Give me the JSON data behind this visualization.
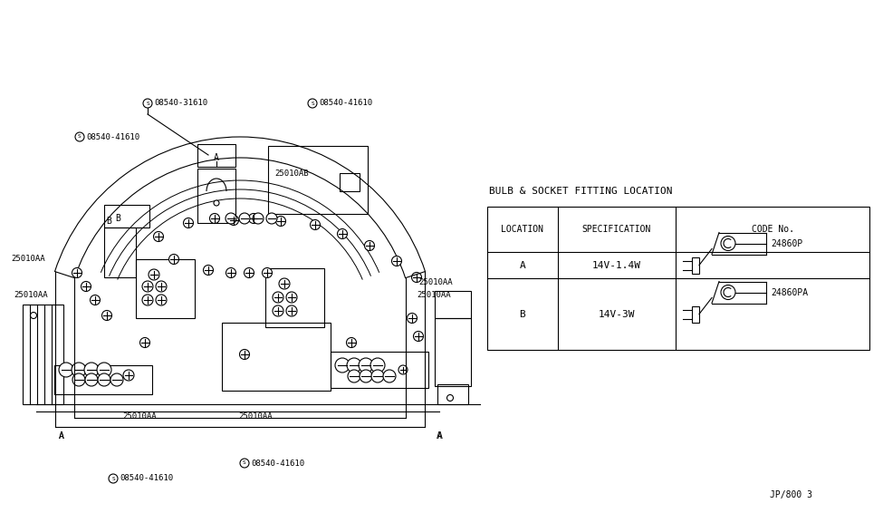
{
  "bg_color": "#ffffff",
  "line_color": "#000000",
  "title_text": "BULB & SOCKET FITTING LOCATION",
  "table_rows": [
    [
      "A",
      "14V-1.4W",
      "24860P"
    ],
    [
      "B",
      "14V-3W",
      "24860PA"
    ]
  ],
  "watermark": "JP/800 3"
}
